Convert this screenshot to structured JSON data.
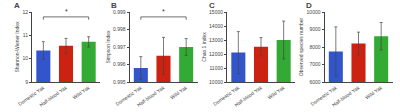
{
  "chart_data": [
    {
      "type": "bar",
      "title": "A",
      "ylabel": "Shannon-Wiener Index",
      "categories": [
        "Domestic Yak",
        "Half-blood Yak",
        "Wild Yak"
      ],
      "values": [
        10.35,
        10.55,
        10.72
      ],
      "errors": [
        0.38,
        0.32,
        0.22
      ],
      "colors": [
        "#3355cc",
        "#cc2211",
        "#33aa33"
      ],
      "ylim": [
        9,
        12
      ],
      "yticks": [
        9,
        10,
        11,
        12
      ],
      "grid": false,
      "annotations": [
        {
          "text": "*",
          "between": [
            "Domestic Yak",
            "Wild Yak"
          ]
        }
      ]
    },
    {
      "type": "bar",
      "title": "B",
      "ylabel": "Simpson Index",
      "categories": [
        "Domestic Yak",
        "Half-blood Yak",
        "Wild Yak"
      ],
      "values": [
        0.9958,
        0.9965,
        0.997
      ],
      "errors": [
        0.00065,
        0.00105,
        0.00048
      ],
      "colors": [
        "#3355cc",
        "#cc2211",
        "#33aa33"
      ],
      "ylim": [
        0.995,
        0.999
      ],
      "yticks": [
        0.995,
        0.996,
        0.997,
        0.998,
        0.999
      ],
      "grid": false,
      "annotations": [
        {
          "text": "*",
          "between": [
            "Domestic Yak",
            "Wild Yak"
          ]
        }
      ]
    },
    {
      "type": "bar",
      "title": "C",
      "ylabel": "Chao 1 index",
      "categories": [
        "Domestic Yak",
        "Half-blood Yak",
        "Wild Yak"
      ],
      "values": [
        12100,
        12520,
        13000
      ],
      "errors": [
        1500,
        650,
        1350
      ],
      "colors": [
        "#3355cc",
        "#cc2211",
        "#33aa33"
      ],
      "ylim": [
        10000,
        15000
      ],
      "yticks": [
        10000,
        11000,
        12000,
        13000,
        14000,
        15000
      ],
      "grid": false
    },
    {
      "type": "bar",
      "title": "D",
      "ylabel": "Observed species number",
      "categories": [
        "Domestic Yak",
        "Half-blood Yak",
        "Wild Yak"
      ],
      "values": [
        7750,
        8200,
        8620
      ],
      "errors": [
        1400,
        650,
        780
      ],
      "colors": [
        "#3355cc",
        "#cc2211",
        "#33aa33"
      ],
      "ylim": [
        6000,
        10000
      ],
      "yticks": [
        6000,
        7000,
        8000,
        9000,
        10000
      ],
      "grid": false
    }
  ]
}
